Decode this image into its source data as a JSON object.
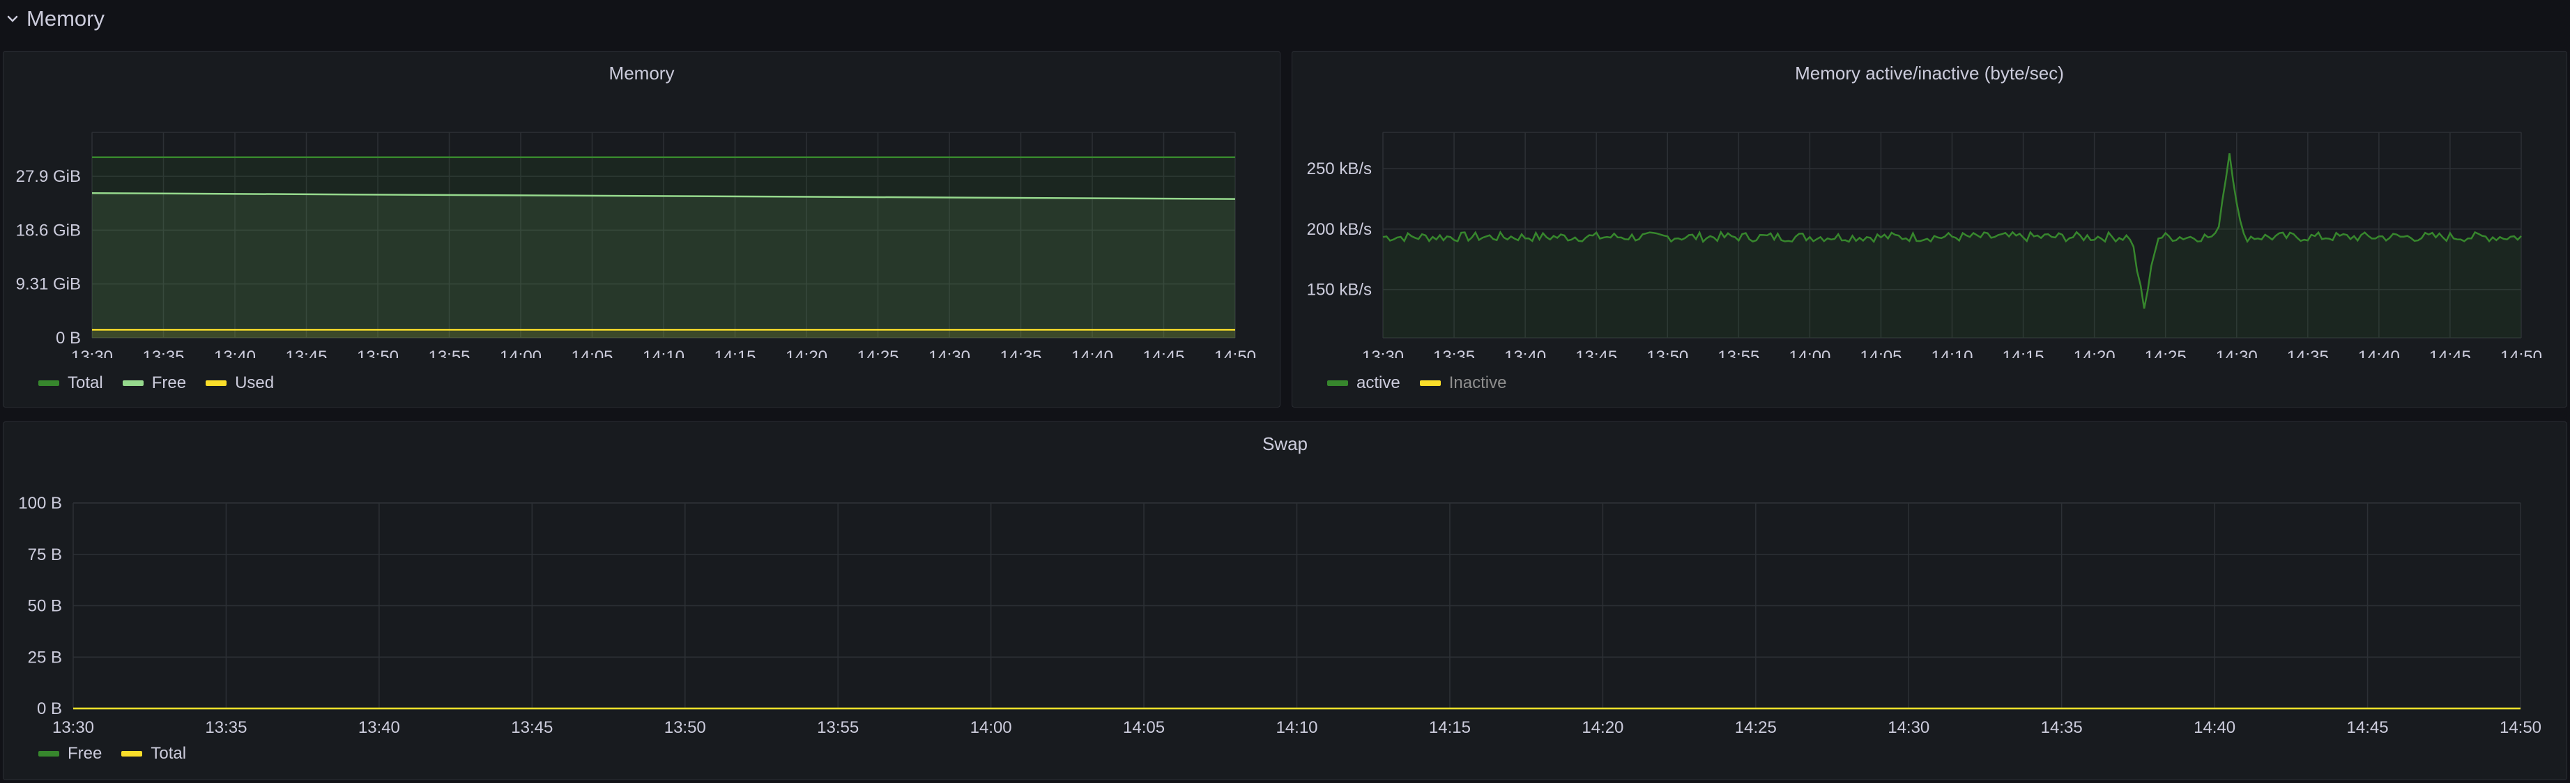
{
  "row": {
    "title": "Memory"
  },
  "chart_data": [
    {
      "id": "memory",
      "type": "line",
      "title": "Memory",
      "x_ticks": [
        "13:30",
        "13:35",
        "13:40",
        "13:45",
        "13:50",
        "13:55",
        "14:00",
        "14:05",
        "14:10",
        "14:15",
        "14:20",
        "14:25",
        "14:30",
        "14:35",
        "14:40",
        "14:45",
        "14:50"
      ],
      "y_ticks": [
        "0 B",
        "9.31 GiB",
        "18.6 GiB",
        "27.9 GiB"
      ],
      "y_tick_values": [
        0,
        9.31,
        18.6,
        27.9
      ],
      "ylim": [
        0,
        35.5
      ],
      "series": [
        {
          "name": "Total",
          "color": "#37872d",
          "x": [
            0,
            80
          ],
          "values": [
            31.2,
            31.2
          ]
        },
        {
          "name": "Free",
          "color": "#96d98d",
          "x": [
            0,
            80
          ],
          "values": [
            25.0,
            24.0
          ]
        },
        {
          "name": "Used",
          "color": "#fade2a",
          "x": [
            0,
            80
          ],
          "values": [
            1.4,
            1.4
          ]
        }
      ]
    },
    {
      "id": "active",
      "type": "line",
      "title": "Memory active/inactive (byte/sec)",
      "x_ticks": [
        "13:30",
        "13:35",
        "13:40",
        "13:45",
        "13:50",
        "13:55",
        "14:00",
        "14:05",
        "14:10",
        "14:15",
        "14:20",
        "14:25",
        "14:30",
        "14:35",
        "14:40",
        "14:45",
        "14:50"
      ],
      "y_ticks": [
        "150 kB/s",
        "200 kB/s",
        "250 kB/s"
      ],
      "y_tick_values": [
        150,
        200,
        250
      ],
      "ylim": [
        110,
        280
      ],
      "series": [
        {
          "name": "active",
          "color": "#37872d",
          "base": 195,
          "spikes": [
            [
              53.5,
              135
            ],
            [
              59.5,
              265
            ]
          ]
        },
        {
          "name": "Inactive",
          "color": "#fade2a",
          "hidden": true
        }
      ]
    },
    {
      "id": "swap",
      "type": "line",
      "title": "Swap",
      "x_ticks": [
        "13:30",
        "13:35",
        "13:40",
        "13:45",
        "13:50",
        "13:55",
        "14:00",
        "14:05",
        "14:10",
        "14:15",
        "14:20",
        "14:25",
        "14:30",
        "14:35",
        "14:40",
        "14:45",
        "14:50"
      ],
      "y_ticks": [
        "0 B",
        "25 B",
        "50 B",
        "75 B",
        "100 B"
      ],
      "y_tick_values": [
        0,
        25,
        50,
        75,
        100
      ],
      "ylim": [
        0,
        100
      ],
      "series": [
        {
          "name": "Free",
          "color": "#37872d",
          "x": [
            0,
            80
          ],
          "values": [
            0,
            0
          ]
        },
        {
          "name": "Total",
          "color": "#fade2a",
          "x": [
            0,
            80
          ],
          "values": [
            0,
            0
          ]
        }
      ]
    }
  ]
}
